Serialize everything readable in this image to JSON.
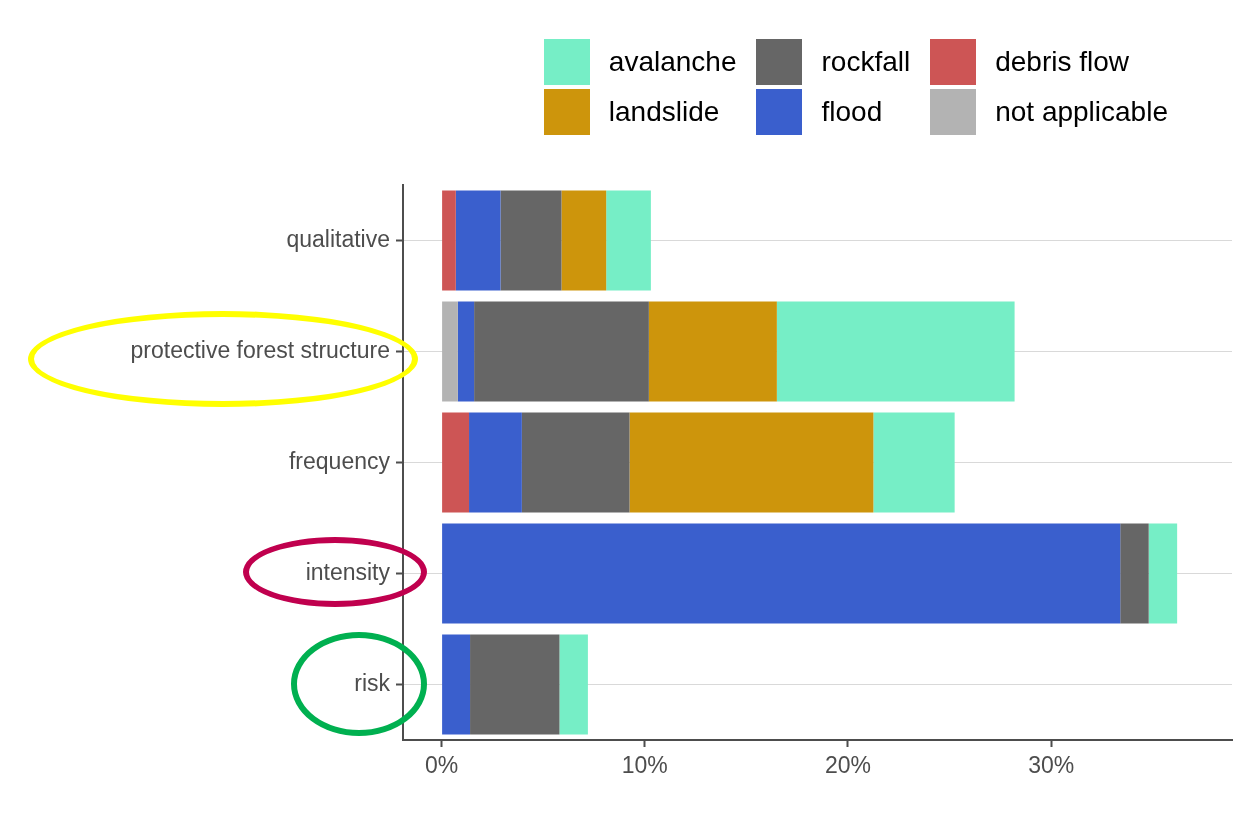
{
  "chart_data": {
    "type": "bar",
    "orientation": "horizontal",
    "stacked": true,
    "categories": [
      "qualitative",
      "protective forest structure",
      "frequency",
      "intensity",
      "risk"
    ],
    "series": [
      {
        "name": "not applicable",
        "color": "#b3b3b3",
        "values": [
          null,
          0.8,
          null,
          null,
          null
        ]
      },
      {
        "name": "debris flow",
        "color": "#cd5555",
        "values": [
          0.7,
          null,
          1.35,
          null,
          null
        ]
      },
      {
        "name": "flood",
        "color": "#3a5fcd",
        "values": [
          2.2,
          0.8,
          2.6,
          33.4,
          1.4
        ]
      },
      {
        "name": "rockfall",
        "color": "#666666",
        "values": [
          3.0,
          8.6,
          5.3,
          1.4,
          4.4
        ]
      },
      {
        "name": "landslide",
        "color": "#cd950c",
        "values": [
          2.2,
          6.3,
          12.0,
          null,
          null
        ]
      },
      {
        "name": "avalanche",
        "color": "#76eec6",
        "values": [
          2.2,
          11.7,
          4.0,
          1.4,
          1.4
        ]
      }
    ],
    "xlim": [
      -1.9,
      38.9
    ],
    "xticks": [
      {
        "value": 0,
        "label": "0%"
      },
      {
        "value": 10,
        "label": "10%"
      },
      {
        "value": 20,
        "label": "20%"
      },
      {
        "value": 30,
        "label": "30%"
      }
    ],
    "grid": "y",
    "legend": "top right"
  }
}
